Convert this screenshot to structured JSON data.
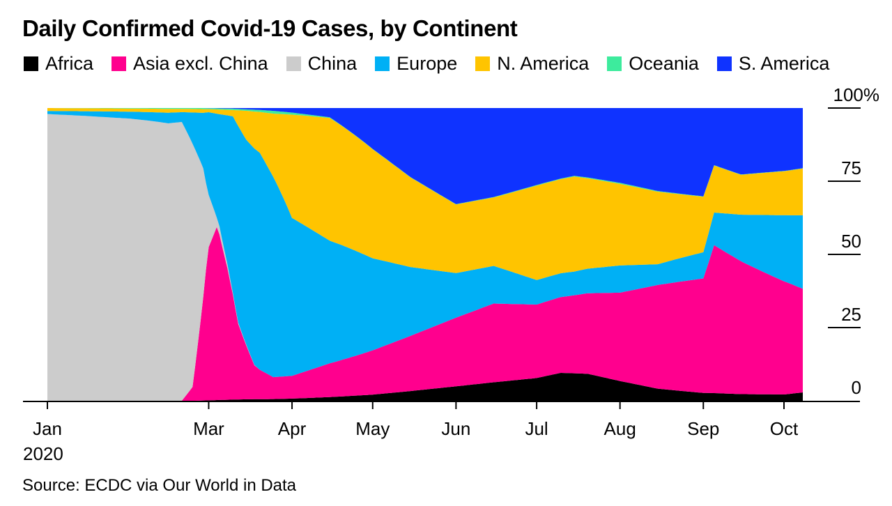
{
  "chart_data": {
    "type": "area",
    "title": "Daily Confirmed Covid-19 Cases, by Continent",
    "stacking": "percent",
    "legend_position": "top",
    "grid": false,
    "source": "Source: ECDC via Our World in Data",
    "x_start": "2020-01-01",
    "x_end": "2020-10-08",
    "x_ticks": [
      {
        "date": "2020-01-01",
        "label": "Jan"
      },
      {
        "date": "2020-03-01",
        "label": "Mar"
      },
      {
        "date": "2020-04-01",
        "label": "Apr"
      },
      {
        "date": "2020-05-01",
        "label": "May"
      },
      {
        "date": "2020-06-01",
        "label": "Jun"
      },
      {
        "date": "2020-07-01",
        "label": "Jul"
      },
      {
        "date": "2020-08-01",
        "label": "Aug"
      },
      {
        "date": "2020-09-01",
        "label": "Sep"
      },
      {
        "date": "2020-10-01",
        "label": "Oct"
      }
    ],
    "x_year_label": "2020",
    "y_ticks": [
      {
        "value": 0,
        "label": "0"
      },
      {
        "value": 25,
        "label": "25"
      },
      {
        "value": 50,
        "label": "50"
      },
      {
        "value": 75,
        "label": "75"
      },
      {
        "value": 100,
        "label": "100%"
      }
    ],
    "ylim": [
      0,
      100
    ],
    "series": [
      {
        "name": "Africa",
        "color": "#000000",
        "points": [
          [
            "2020-01-01",
            0
          ],
          [
            "2020-02-25",
            0
          ],
          [
            "2020-03-15",
            0.5
          ],
          [
            "2020-04-01",
            0.7
          ],
          [
            "2020-04-15",
            1.2
          ],
          [
            "2020-05-01",
            1.8
          ],
          [
            "2020-05-15",
            2.8
          ],
          [
            "2020-06-01",
            4.2
          ],
          [
            "2020-06-15",
            5.4
          ],
          [
            "2020-07-01",
            6.5
          ],
          [
            "2020-07-10",
            8.2
          ],
          [
            "2020-07-20",
            8.0
          ],
          [
            "2020-08-01",
            5.8
          ],
          [
            "2020-08-15",
            3.5
          ],
          [
            "2020-09-01",
            2.4
          ],
          [
            "2020-09-15",
            2.0
          ],
          [
            "2020-10-01",
            2.0
          ],
          [
            "2020-10-08",
            2.5
          ]
        ]
      },
      {
        "name": "Asia excl. China",
        "color": "#ff008e",
        "points": [
          [
            "2020-01-01",
            0
          ],
          [
            "2020-02-20",
            0
          ],
          [
            "2020-02-24",
            4
          ],
          [
            "2020-02-28",
            28
          ],
          [
            "2020-03-01",
            50
          ],
          [
            "2020-03-04",
            55
          ],
          [
            "2020-03-08",
            42
          ],
          [
            "2020-03-12",
            25
          ],
          [
            "2020-03-18",
            12
          ],
          [
            "2020-03-25",
            8
          ],
          [
            "2020-04-01",
            7.5
          ],
          [
            "2020-04-15",
            11
          ],
          [
            "2020-05-01",
            13
          ],
          [
            "2020-05-15",
            16
          ],
          [
            "2020-06-01",
            20
          ],
          [
            "2020-06-15",
            23
          ],
          [
            "2020-07-01",
            21
          ],
          [
            "2020-07-15",
            23
          ],
          [
            "2020-08-01",
            26
          ],
          [
            "2020-08-15",
            30
          ],
          [
            "2020-09-01",
            35
          ],
          [
            "2020-09-05",
            44
          ],
          [
            "2020-09-15",
            40
          ],
          [
            "2020-10-01",
            36
          ],
          [
            "2020-10-08",
            31
          ]
        ]
      },
      {
        "name": "China",
        "color": "#cccccc",
        "points": [
          [
            "2020-01-01",
            96
          ],
          [
            "2020-01-15",
            95
          ],
          [
            "2020-02-01",
            90
          ],
          [
            "2020-02-15",
            73
          ],
          [
            "2020-02-20",
            85
          ],
          [
            "2020-02-24",
            70
          ],
          [
            "2020-03-01",
            17
          ],
          [
            "2020-03-04",
            3
          ],
          [
            "2020-03-10",
            0.5
          ],
          [
            "2020-03-20",
            0
          ],
          [
            "2020-10-08",
            0
          ]
        ]
      },
      {
        "name": "Europe",
        "color": "#00b0f5",
        "points": [
          [
            "2020-01-01",
            1
          ],
          [
            "2020-02-20",
            3
          ],
          [
            "2020-02-28",
            15
          ],
          [
            "2020-03-01",
            27
          ],
          [
            "2020-03-05",
            35
          ],
          [
            "2020-03-12",
            65
          ],
          [
            "2020-03-20",
            80
          ],
          [
            "2020-03-25",
            73
          ],
          [
            "2020-04-01",
            52
          ],
          [
            "2020-04-15",
            40
          ],
          [
            "2020-05-01",
            27
          ],
          [
            "2020-05-15",
            20
          ],
          [
            "2020-06-01",
            13
          ],
          [
            "2020-06-15",
            11
          ],
          [
            "2020-07-01",
            7
          ],
          [
            "2020-07-15",
            7
          ],
          [
            "2020-08-01",
            8
          ],
          [
            "2020-08-15",
            6
          ],
          [
            "2020-09-01",
            8
          ],
          [
            "2020-09-15",
            14
          ],
          [
            "2020-10-01",
            21
          ],
          [
            "2020-10-08",
            22
          ]
        ]
      },
      {
        "name": "N. America",
        "color": "#ffc400",
        "points": [
          [
            "2020-01-01",
            1
          ],
          [
            "2020-02-20",
            1
          ],
          [
            "2020-03-01",
            1
          ],
          [
            "2020-03-10",
            2
          ],
          [
            "2020-03-15",
            10
          ],
          [
            "2020-03-20",
            15
          ],
          [
            "2020-03-25",
            23
          ],
          [
            "2020-04-01",
            34
          ],
          [
            "2020-04-15",
            40
          ],
          [
            "2020-05-01",
            32
          ],
          [
            "2020-05-15",
            26
          ],
          [
            "2020-06-01",
            20
          ],
          [
            "2020-06-15",
            20
          ],
          [
            "2020-07-01",
            27
          ],
          [
            "2020-07-15",
            28
          ],
          [
            "2020-08-01",
            24
          ],
          [
            "2020-08-15",
            21
          ],
          [
            "2020-09-01",
            17
          ],
          [
            "2020-09-05",
            14
          ],
          [
            "2020-09-15",
            12
          ],
          [
            "2020-10-01",
            14
          ],
          [
            "2020-10-08",
            14
          ]
        ]
      },
      {
        "name": "Oceania",
        "color": "#3deb9d",
        "points": [
          [
            "2020-01-01",
            0
          ],
          [
            "2020-02-28",
            0.3
          ],
          [
            "2020-03-15",
            0.5
          ],
          [
            "2020-03-25",
            1
          ],
          [
            "2020-04-05",
            0.5
          ],
          [
            "2020-04-20",
            0.1
          ],
          [
            "2020-06-01",
            0.1
          ],
          [
            "2020-07-15",
            0.2
          ],
          [
            "2020-08-01",
            0.3
          ],
          [
            "2020-08-15",
            0.2
          ],
          [
            "2020-09-01",
            0.1
          ],
          [
            "2020-10-08",
            0.1
          ]
        ]
      },
      {
        "name": "S. America",
        "color": "#0f33ff",
        "points": [
          [
            "2020-01-01",
            0
          ],
          [
            "2020-02-28",
            0
          ],
          [
            "2020-03-10",
            0.2
          ],
          [
            "2020-03-20",
            0.7
          ],
          [
            "2020-04-01",
            1.5
          ],
          [
            "2020-04-15",
            3
          ],
          [
            "2020-05-01",
            12
          ],
          [
            "2020-05-15",
            20
          ],
          [
            "2020-06-01",
            28
          ],
          [
            "2020-06-15",
            26
          ],
          [
            "2020-07-01",
            22
          ],
          [
            "2020-07-15",
            20
          ],
          [
            "2020-08-01",
            22
          ],
          [
            "2020-08-15",
            24
          ],
          [
            "2020-09-01",
            27
          ],
          [
            "2020-09-05",
            17
          ],
          [
            "2020-09-15",
            20
          ],
          [
            "2020-10-01",
            20
          ],
          [
            "2020-10-08",
            18
          ]
        ]
      }
    ]
  }
}
